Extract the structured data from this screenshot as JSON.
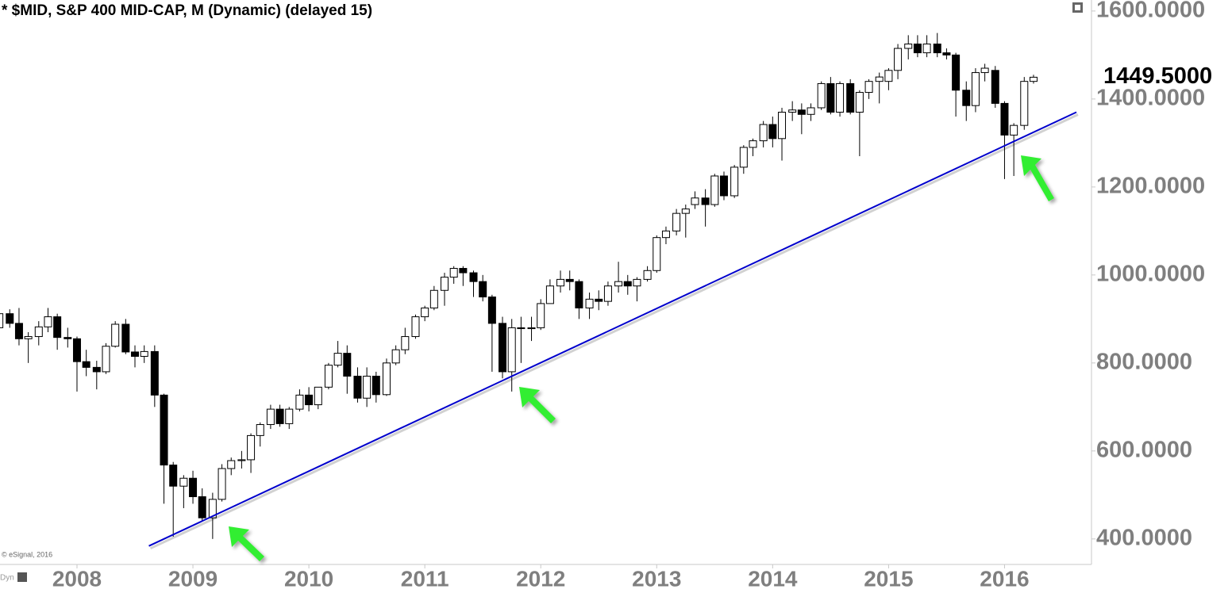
{
  "chart_data": {
    "type": "candlestick",
    "title": "* $MID, S&P 400 MID-CAP, M (Dynamic) (delayed 15)",
    "credit": "© eSignal, 2016",
    "corner_label": "Dyn",
    "x": [
      2007.33,
      2007.42,
      2007.5,
      2007.58,
      2007.67,
      2007.75,
      2007.83,
      2007.92,
      2008,
      2008.08,
      2008.17,
      2008.25,
      2008.33,
      2008.42,
      2008.5,
      2008.58,
      2008.67,
      2008.75,
      2008.83,
      2008.92,
      2009,
      2009.08,
      2009.17,
      2009.25,
      2009.33,
      2009.42,
      2009.5,
      2009.58,
      2009.67,
      2009.75,
      2009.83,
      2009.92,
      2010,
      2010.08,
      2010.17,
      2010.25,
      2010.33,
      2010.42,
      2010.5,
      2010.58,
      2010.67,
      2010.75,
      2010.83,
      2010.92,
      2011,
      2011.08,
      2011.17,
      2011.25,
      2011.33,
      2011.42,
      2011.5,
      2011.58,
      2011.67,
      2011.75,
      2011.83,
      2011.92,
      2012,
      2012.08,
      2012.17,
      2012.25,
      2012.33,
      2012.42,
      2012.5,
      2012.58,
      2012.67,
      2012.75,
      2012.83,
      2012.92,
      2013,
      2013.08,
      2013.17,
      2013.25,
      2013.33,
      2013.42,
      2013.5,
      2013.58,
      2013.67,
      2013.75,
      2013.83,
      2013.92,
      2014,
      2014.08,
      2014.17,
      2014.25,
      2014.33,
      2014.42,
      2014.5,
      2014.58,
      2014.67,
      2014.75,
      2014.83,
      2014.92,
      2015,
      2015.08,
      2015.17,
      2015.25,
      2015.33,
      2015.42,
      2015.5,
      2015.58,
      2015.67,
      2015.75,
      2015.83,
      2015.92,
      2016,
      2016.08,
      2016.17,
      2016.25
    ],
    "open": [
      880,
      912,
      890,
      855,
      860,
      882,
      905,
      858,
      855,
      803,
      790,
      780,
      838,
      888,
      825,
      815,
      826,
      727,
      568,
      520,
      538,
      496,
      448,
      490,
      560,
      578,
      580,
      635,
      660,
      695,
      662,
      695,
      727,
      705,
      745,
      795,
      822,
      770,
      720,
      770,
      728,
      800,
      830,
      860,
      905,
      925,
      965,
      995,
      1015,
      1005,
      985,
      950,
      890,
      780,
      880,
      878,
      880,
      935,
      975,
      990,
      985,
      925,
      945,
      940,
      975,
      985,
      975,
      990,
      1010,
      1085,
      1100,
      1140,
      1160,
      1175,
      1160,
      1225,
      1180,
      1245,
      1290,
      1305,
      1342,
      1310,
      1370,
      1375,
      1365,
      1380,
      1435,
      1370,
      1435,
      1370,
      1415,
      1440,
      1440,
      1465,
      1515,
      1525,
      1505,
      1525,
      1505,
      1500,
      1420,
      1385,
      1460,
      1465,
      1390,
      1318,
      1340,
      1440
    ],
    "high": [
      925,
      922,
      925,
      870,
      895,
      925,
      912,
      880,
      860,
      830,
      805,
      845,
      895,
      900,
      840,
      840,
      840,
      730,
      575,
      545,
      555,
      515,
      505,
      570,
      585,
      600,
      640,
      665,
      705,
      705,
      700,
      740,
      745,
      745,
      800,
      850,
      840,
      790,
      790,
      780,
      810,
      840,
      880,
      910,
      930,
      975,
      1005,
      1020,
      1020,
      1010,
      1000,
      955,
      905,
      900,
      905,
      905,
      945,
      990,
      1010,
      1010,
      990,
      960,
      965,
      985,
      1030,
      1000,
      995,
      1020,
      1090,
      1110,
      1150,
      1160,
      1190,
      1195,
      1230,
      1235,
      1250,
      1295,
      1310,
      1350,
      1360,
      1380,
      1395,
      1390,
      1390,
      1440,
      1450,
      1440,
      1445,
      1420,
      1445,
      1460,
      1470,
      1525,
      1545,
      1545,
      1545,
      1550,
      1515,
      1505,
      1440,
      1470,
      1480,
      1475,
      1395,
      1345,
      1450,
      1455
    ],
    "low": [
      870,
      880,
      840,
      800,
      840,
      870,
      830,
      835,
      735,
      770,
      740,
      775,
      835,
      820,
      790,
      800,
      700,
      480,
      405,
      470,
      480,
      440,
      400,
      485,
      545,
      560,
      550,
      610,
      650,
      655,
      650,
      690,
      690,
      695,
      740,
      790,
      730,
      710,
      700,
      710,
      725,
      795,
      820,
      855,
      895,
      920,
      930,
      980,
      975,
      950,
      940,
      780,
      765,
      735,
      800,
      850,
      875,
      935,
      960,
      965,
      900,
      900,
      920,
      930,
      960,
      955,
      940,
      985,
      1005,
      1070,
      1090,
      1085,
      1150,
      1110,
      1155,
      1170,
      1175,
      1230,
      1270,
      1290,
      1290,
      1260,
      1350,
      1320,
      1350,
      1375,
      1365,
      1360,
      1365,
      1270,
      1400,
      1390,
      1420,
      1445,
      1490,
      1495,
      1495,
      1495,
      1490,
      1360,
      1350,
      1370,
      1440,
      1380,
      1218,
      1225,
      1330,
      1435
    ],
    "close": [
      912,
      890,
      855,
      860,
      882,
      905,
      858,
      855,
      803,
      790,
      780,
      838,
      888,
      825,
      815,
      826,
      727,
      568,
      520,
      538,
      496,
      448,
      490,
      560,
      578,
      580,
      635,
      660,
      695,
      662,
      695,
      727,
      705,
      745,
      795,
      822,
      770,
      720,
      770,
      728,
      800,
      830,
      860,
      905,
      925,
      965,
      995,
      1015,
      1005,
      985,
      950,
      890,
      780,
      880,
      878,
      880,
      935,
      975,
      990,
      985,
      925,
      945,
      940,
      975,
      985,
      975,
      990,
      1010,
      1085,
      1100,
      1140,
      1150,
      1175,
      1160,
      1225,
      1180,
      1245,
      1290,
      1305,
      1342,
      1310,
      1370,
      1375,
      1365,
      1380,
      1435,
      1370,
      1435,
      1370,
      1415,
      1440,
      1450,
      1465,
      1515,
      1525,
      1505,
      1525,
      1505,
      1500,
      1420,
      1385,
      1460,
      1470,
      1390,
      1318,
      1340,
      1440,
      1449.5
    ],
    "up_color": "#ffffff",
    "down_color": "#000000",
    "last_price": {
      "value": 1449.5,
      "label": "1449.5000"
    },
    "trendline": {
      "x": [
        2008.62,
        2016.62
      ],
      "y": [
        384,
        1370
      ],
      "color": "#0000cc"
    },
    "xlim": [
      2007.336,
      2016.75
    ],
    "ylim": [
      342,
      1625
    ],
    "xticks": [
      2008,
      2009,
      2010,
      2011,
      2012,
      2013,
      2014,
      2015,
      2016
    ],
    "yticks": [
      {
        "value": 400,
        "label": "400.0000"
      },
      {
        "value": 600,
        "label": "600.0000"
      },
      {
        "value": 800,
        "label": "800.0000"
      },
      {
        "value": 1000,
        "label": "1000.0000"
      },
      {
        "value": 1200,
        "label": "1200.0000"
      },
      {
        "value": 1400,
        "label": "1400.0000"
      },
      {
        "value": 1600,
        "label": "1600.0000"
      }
    ]
  }
}
